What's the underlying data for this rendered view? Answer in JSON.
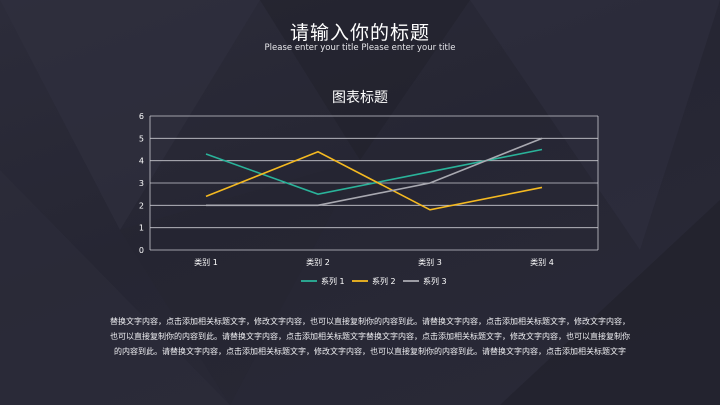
{
  "slide": {
    "title": "请输入你的标题",
    "subtitle": "Please enter your title Please enter your title",
    "body": "替换文字内容，点击添加相关标题文字，修改文字内容，也可以直接复制你的内容到此。请替换文字内容，点击添加相关标题文字，修改文字内容，也可以直接复制你的内容到此。请替换文字内容，点击添加相关标题文字替换文字内容，点击添加相关标题文字，修改文字内容，也可以直接复制你的内容到此。请替换文字内容，点击添加相关标题文字，修改文字内容，也可以直接复制你的内容到此。请替换文字内容，点击添加相关标题文字"
  },
  "colors": {
    "series1": "#2ab39a",
    "series2": "#f4b921",
    "series3": "#a9a9b1",
    "grid": "#c9c9d0",
    "text": "#ffffff"
  },
  "chart_data": {
    "type": "line",
    "title": "图表标题",
    "categories": [
      "类别 1",
      "类别 2",
      "类别 3",
      "类别 4"
    ],
    "series": [
      {
        "name": "系列 1",
        "values": [
          4.3,
          2.5,
          3.5,
          4.5
        ]
      },
      {
        "name": "系列 2",
        "values": [
          2.4,
          4.4,
          1.8,
          2.8
        ]
      },
      {
        "name": "系列 3",
        "values": [
          2.0,
          2.0,
          3.0,
          5.0
        ]
      }
    ],
    "ylim": [
      0,
      6
    ],
    "yticks": [
      "0",
      "1",
      "2",
      "3",
      "4",
      "5",
      "6"
    ],
    "grid": true,
    "legend": "bottom"
  }
}
